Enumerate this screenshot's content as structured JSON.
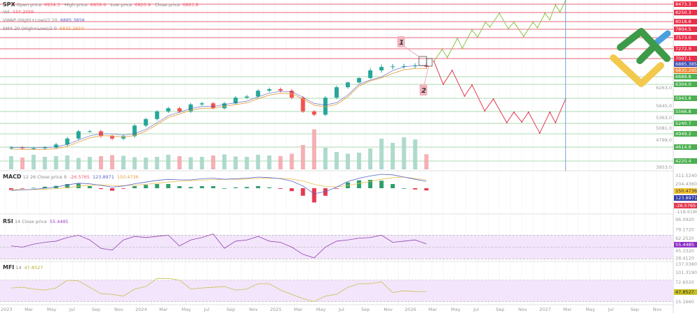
{
  "header": {
    "symbol": "SPX",
    "open_label": "Open price",
    "open_value": "6934.5",
    "high_label": "High price",
    "high_value": "6959.6",
    "low_label": "Low price",
    "low_value": "6820.9",
    "close_label": "Close price",
    "close_value": "6863.8",
    "vol_label": "Vol",
    "vol_value": "434.205K",
    "vwap_label": "VWAP (Hight+Low)/2 20",
    "vwap_value": "6885.3856",
    "sma_label": "SMA 20 (High+Low)/2 0",
    "sma_value": "6835.2950"
  },
  "annotations": {
    "marker_1": "1",
    "marker_2": "2"
  },
  "indicators": {
    "macd": {
      "label": "MACD",
      "params": "12 26 Close price 9",
      "hist": "-26.5765",
      "macd": "123.8971",
      "signal": "150.4736"
    },
    "rsi": {
      "label": "RSI",
      "params": "14 Close price",
      "value": "55.4485"
    },
    "mfi": {
      "label": "MFI",
      "params": "14",
      "value": "47.8527"
    }
  },
  "colors": {
    "up": "#26a69a",
    "down": "#ef5350",
    "resistance": "#e8546a",
    "support": "#66bb6a",
    "vwap": "#3f51b5",
    "sma": "#e8a040",
    "bull_path": "#8bc34a",
    "bear_path": "#e53950",
    "macd": "#5b63c9",
    "signal": "#e8c050",
    "rsi": "#8e44ad",
    "mfi": "#c8c050",
    "band": "#f3e5fb"
  },
  "chart_data": {
    "type": "candlestick",
    "symbol": "SPX",
    "interval_shown": "monthly approximation",
    "x_start": "2023-01",
    "closes": [
      4600,
      4580,
      4580,
      4600,
      4680,
      4830,
      5020,
      5020,
      4890,
      4830,
      4890,
      5180,
      5360,
      5570,
      5660,
      5570,
      5770,
      5800,
      5660,
      5800,
      5960,
      5990,
      6140,
      6180,
      6140,
      5960,
      5570,
      5480,
      5960,
      6230,
      6400,
      6620,
      6800,
      6860,
      6870,
      6875,
      6885,
      6864
    ],
    "volume_k": [
      380,
      340,
      420,
      360,
      380,
      400,
      330,
      360,
      380,
      410,
      390,
      350,
      340,
      360,
      420,
      380,
      350,
      360,
      400,
      430,
      370,
      360,
      420,
      400,
      380,
      450,
      700,
      1150,
      620,
      500,
      450,
      480,
      600,
      880,
      760,
      920,
      860,
      434.2
    ],
    "price_levels": [
      {
        "price": "8473.3",
        "type": "resistance"
      },
      {
        "price": "8250.3",
        "type": "resistance"
      },
      {
        "price": "8018.8",
        "type": "resistance"
      },
      {
        "price": "7804.5",
        "type": "resistance"
      },
      {
        "price": "7573.0",
        "type": "resistance"
      },
      {
        "price": "7272.9",
        "type": "resistance"
      },
      {
        "price": "7007.1",
        "type": "resistance"
      },
      {
        "price": "6689.8",
        "type": "support"
      },
      {
        "price": "6304.0",
        "type": "support"
      },
      {
        "price": "5943.8",
        "type": "support"
      },
      {
        "price": "5566.8",
        "type": "support"
      },
      {
        "price": "5240.7",
        "type": "support"
      },
      {
        "price": "4949.2",
        "type": "support"
      },
      {
        "price": "4614.8",
        "type": "support"
      },
      {
        "price": "4220.4",
        "type": "support"
      }
    ],
    "axis_ticks": [
      "6263.0",
      "5645.0",
      "5363.0",
      "5081.0",
      "4799.0",
      "3953.0"
    ],
    "bull_projection": [
      [
        "2026-03-06",
        6960
      ],
      [
        "2026-03-28",
        7255
      ],
      [
        "2026-04-12",
        7040
      ],
      [
        "2026-05-09",
        7555
      ],
      [
        "2026-05-22",
        7290
      ],
      [
        "2026-06-18",
        7785
      ],
      [
        "2026-07-03",
        7590
      ],
      [
        "2026-07-24",
        8000
      ],
      [
        "2026-08-06",
        7870
      ],
      [
        "2026-09-01",
        8230
      ],
      [
        "2026-09-25",
        7820
      ],
      [
        "2026-10-10",
        8000
      ],
      [
        "2026-11-06",
        7610
      ],
      [
        "2026-12-01",
        8000
      ],
      [
        "2026-12-13",
        7850
      ],
      [
        "2027-01-03",
        8230
      ],
      [
        "2027-01-16",
        8070
      ],
      [
        "2027-02-01",
        8455
      ],
      [
        "2027-02-13",
        8270
      ],
      [
        "2027-02-28",
        8550
      ]
    ],
    "bear_projection": [
      [
        "2026-03-06",
        6960
      ],
      [
        "2026-04-01",
        6304
      ],
      [
        "2026-04-25",
        6800
      ],
      [
        "2026-05-28",
        6000
      ],
      [
        "2026-06-18",
        6290
      ],
      [
        "2026-07-22",
        5585
      ],
      [
        "2026-08-15",
        5925
      ],
      [
        "2026-09-21",
        5260
      ],
      [
        "2026-10-10",
        5550
      ],
      [
        "2026-11-01",
        5280
      ],
      [
        "2026-11-19",
        5550
      ],
      [
        "2026-12-19",
        4970
      ],
      [
        "2027-01-16",
        5550
      ],
      [
        "2027-02-01",
        5260
      ],
      [
        "2027-02-28",
        5925
      ]
    ],
    "vertical_marker_date": "2027-02-28",
    "macd_line": [
      -40,
      -30,
      -20,
      0,
      20,
      60,
      90,
      80,
      50,
      20,
      40,
      80,
      110,
      140,
      160,
      150,
      150,
      170,
      180,
      160,
      170,
      180,
      200,
      190,
      170,
      130,
      40,
      -100,
      -60,
      20,
      120,
      180,
      220,
      250,
      240,
      200,
      160,
      123.9
    ],
    "signal_line": [
      -20,
      -25,
      -25,
      -18,
      -8,
      10,
      35,
      55,
      60,
      50,
      45,
      55,
      70,
      90,
      110,
      125,
      135,
      145,
      155,
      160,
      160,
      165,
      175,
      180,
      178,
      165,
      130,
      70,
      30,
      25,
      50,
      85,
      120,
      160,
      190,
      200,
      175,
      150.5
    ],
    "rsi": [
      52,
      50,
      55,
      58,
      60,
      66,
      70,
      62,
      48,
      45,
      62,
      68,
      66,
      68,
      70,
      52,
      62,
      66,
      72,
      48,
      60,
      62,
      68,
      60,
      58,
      50,
      38,
      32,
      50,
      60,
      62,
      65,
      66,
      70,
      58,
      60,
      62,
      55.4
    ],
    "rsi_axis": [
      "96.0920",
      "79.1720",
      "62.2520",
      "45.3320",
      "28.4120"
    ],
    "rsi_bands": [
      70,
      50,
      30
    ],
    "mfi": [
      58,
      60,
      55,
      52,
      58,
      80,
      78,
      60,
      42,
      40,
      35,
      55,
      62,
      85,
      85,
      80,
      55,
      58,
      60,
      62,
      52,
      55,
      70,
      70,
      52,
      40,
      28,
      20,
      35,
      40,
      60,
      70,
      70,
      75,
      45,
      50,
      48,
      47.85
    ],
    "mfi_axis": [
      "137.0380",
      "101.3190",
      "72.6020",
      "15.1660"
    ],
    "mfi_bands": [
      80,
      20
    ],
    "macd_axis": [
      "311.5240",
      "204.4360",
      "-118.6180"
    ],
    "x_ticks": [
      "2023",
      "Mar",
      "May",
      "Jul",
      "Sep",
      "Nov",
      "2024",
      "Mar",
      "May",
      "Jul",
      "Sep",
      "Nov",
      "2025",
      "Mar",
      "May",
      "Jul",
      "Sep",
      "Nov",
      "2026",
      "Mar",
      "May",
      "Jul",
      "Sep",
      "Nov",
      "2027",
      "Mar",
      "May",
      "Jul",
      "Sep",
      "Nov"
    ]
  }
}
